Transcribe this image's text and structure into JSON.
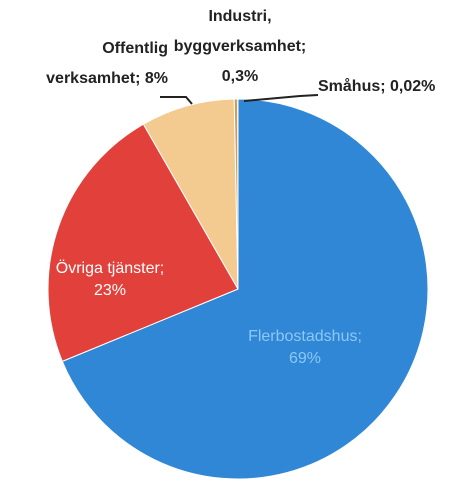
{
  "chart_data": {
    "type": "pie",
    "categories": [
      "Flerbostadshus;",
      "Övriga tjänster;",
      "Offentlig verksamhet;",
      "Industri, byggverksamhet;",
      "Småhus;"
    ],
    "values": [
      69,
      23,
      8,
      0.3,
      0.02
    ],
    "value_labels": [
      "69%",
      "23%",
      "8%",
      "0,3%",
      "0,02%"
    ],
    "colors": [
      "#2f87d6",
      "#e2413b",
      "#f3cb90",
      "#c9a060",
      "#1f5f9a"
    ]
  }
}
